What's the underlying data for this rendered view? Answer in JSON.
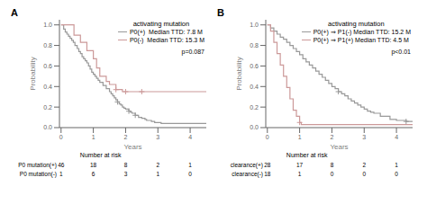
{
  "chart_data": [
    {
      "type": "line",
      "line_style": "step",
      "panel_label": "A",
      "legend_title": "activating mutation",
      "legend": "upper right",
      "grid": false,
      "x_label": "Years",
      "y_label": "Probability",
      "xlim": [
        -0.05,
        4.5
      ],
      "ylim": [
        0.0,
        1.05
      ],
      "xticks": [
        0,
        1,
        2,
        3,
        4
      ],
      "yticks": [
        {
          "value": 0.0,
          "label": "0.0"
        },
        0.2,
        0.4,
        0.6,
        0.8,
        {
          "value": 1.0,
          "label": "1.0"
        }
      ],
      "annotations": [
        "p=0.087"
      ],
      "series": [
        {
          "name": "P0(+)  Median TTD: 7.8 M",
          "color": "#999999",
          "x": [
            0,
            0.08,
            0.13,
            0.18,
            0.23,
            0.28,
            0.33,
            0.38,
            0.43,
            0.5,
            0.55,
            0.6,
            0.65,
            0.7,
            0.75,
            0.8,
            0.85,
            0.9,
            0.95,
            1.0,
            1.05,
            1.1,
            1.15,
            1.2,
            1.3,
            1.4,
            1.5,
            1.55,
            1.6,
            1.65,
            1.7,
            1.75,
            1.8,
            1.85,
            1.9,
            1.95,
            2.0,
            2.1,
            2.15,
            2.2,
            2.3,
            2.4,
            2.5,
            2.6,
            2.65,
            2.7,
            2.8,
            2.9,
            3.0,
            3.1,
            3.3,
            3.5,
            4.0,
            4.5
          ],
          "values": [
            1.0,
            0.96,
            0.93,
            0.91,
            0.89,
            0.87,
            0.85,
            0.83,
            0.8,
            0.77,
            0.74,
            0.72,
            0.69,
            0.67,
            0.65,
            0.63,
            0.6,
            0.57,
            0.54,
            0.52,
            0.5,
            0.48,
            0.46,
            0.44,
            0.41,
            0.38,
            0.35,
            0.33,
            0.31,
            0.29,
            0.27,
            0.25,
            0.23,
            0.22,
            0.2,
            0.19,
            0.18,
            0.16,
            0.15,
            0.14,
            0.12,
            0.1,
            0.09,
            0.08,
            0.07,
            0.07,
            0.06,
            0.05,
            0.05,
            0.04,
            0.04,
            0.04,
            0.04,
            0.04
          ],
          "censored": {
            "marker": "plus",
            "x": [
              1.75,
              2.1,
              2.3
            ],
            "values": [
              0.25,
              0.16,
              0.12
            ]
          }
        },
        {
          "name": "P0(-)  Median TTD: 15.3 M",
          "color": "#cc9999",
          "x": [
            0,
            0.4,
            0.6,
            0.8,
            1.0,
            1.1,
            1.2,
            1.4,
            1.5,
            1.7,
            1.9,
            2.0,
            2.2,
            2.5,
            3.0,
            3.5,
            4.0,
            4.5
          ],
          "values": [
            1.0,
            0.9,
            0.83,
            0.75,
            0.67,
            0.58,
            0.5,
            0.45,
            0.42,
            0.37,
            0.35,
            0.35,
            0.35,
            0.35,
            0.35,
            0.35,
            0.35,
            0.35
          ],
          "censored": {
            "marker": "plus",
            "x": [
              1.7,
              2.0,
              2.5
            ],
            "values": [
              0.37,
              0.35,
              0.35
            ]
          }
        }
      ],
      "at_risk": {
        "title": "Number at risk",
        "rows": [
          {
            "label": "P0 mutation(+)",
            "values": [
              46,
              18,
              8,
              2,
              1
            ]
          },
          {
            "label": "P0 mutation(-)",
            "values": [
              1,
              6,
              3,
              1,
              0
            ]
          }
        ]
      }
    },
    {
      "type": "line",
      "line_style": "step",
      "panel_label": "B",
      "legend_title": "activating mutation",
      "legend": "upper right",
      "grid": false,
      "x_label": "Years",
      "y_label": "Probability",
      "xlim": [
        -0.05,
        4.5
      ],
      "ylim": [
        0.0,
        1.05
      ],
      "xticks": [
        0,
        1,
        2,
        3,
        4
      ],
      "yticks": [
        {
          "value": 0.0,
          "label": "0.0"
        },
        0.2,
        0.4,
        0.6,
        0.8,
        {
          "value": 1.0,
          "label": "1.0"
        }
      ],
      "annotations": [
        "p<0.01"
      ],
      "series": [
        {
          "name": "P0(+) ⇒ P1(-) Median TTD: 15.2 M",
          "color": "#999999",
          "x": [
            0,
            0.1,
            0.2,
            0.3,
            0.4,
            0.5,
            0.6,
            0.7,
            0.8,
            0.9,
            1.0,
            1.1,
            1.2,
            1.3,
            1.4,
            1.5,
            1.6,
            1.7,
            1.8,
            1.9,
            2.0,
            2.1,
            2.2,
            2.3,
            2.4,
            2.5,
            2.6,
            2.7,
            2.8,
            2.9,
            3.0,
            3.1,
            3.2,
            3.3,
            3.5,
            3.8,
            4.0,
            4.3,
            4.5
          ],
          "values": [
            1.0,
            0.97,
            0.94,
            0.91,
            0.88,
            0.86,
            0.83,
            0.8,
            0.77,
            0.74,
            0.71,
            0.67,
            0.64,
            0.61,
            0.58,
            0.55,
            0.52,
            0.49,
            0.46,
            0.43,
            0.4,
            0.38,
            0.35,
            0.33,
            0.31,
            0.28,
            0.26,
            0.24,
            0.22,
            0.2,
            0.18,
            0.16,
            0.15,
            0.14,
            0.11,
            0.08,
            0.07,
            0.06,
            0.06
          ],
          "censored": {
            "marker": "plus",
            "x": [
              2.2,
              4.3
            ],
            "values": [
              0.35,
              0.06
            ]
          }
        },
        {
          "name": "P0(+) ⇒ P1(+) Median TTD: 4.5 M",
          "color": "#cc9999",
          "x": [
            0,
            0.1,
            0.2,
            0.3,
            0.4,
            0.5,
            0.6,
            0.7,
            0.8,
            0.9,
            1.0,
            1.05,
            1.5,
            4.5
          ],
          "values": [
            1.0,
            0.94,
            0.83,
            0.72,
            0.61,
            0.5,
            0.39,
            0.28,
            0.17,
            0.11,
            0.05,
            0.03,
            0.03,
            0.03
          ],
          "censored": {
            "marker": "plus",
            "x": [
              1.0
            ],
            "values": [
              0.05
            ]
          }
        }
      ],
      "at_risk": {
        "title": "Number at risk",
        "rows": [
          {
            "label": "clearance(+)",
            "values": [
              28,
              17,
              8,
              2,
              1
            ]
          },
          {
            "label": "clearance(-)",
            "values": [
              18,
              1,
              0,
              0,
              0
            ]
          }
        ]
      }
    }
  ]
}
